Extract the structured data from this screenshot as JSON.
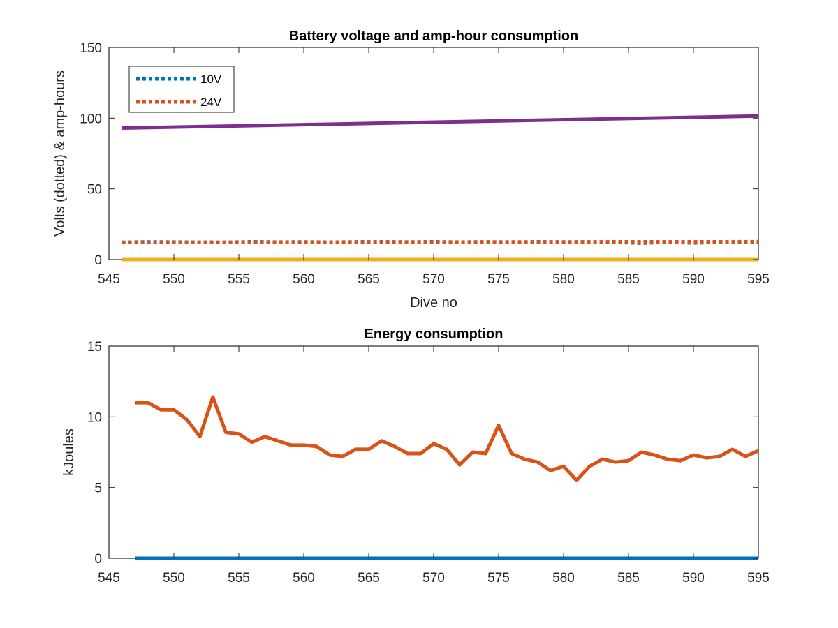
{
  "chart_data": [
    {
      "type": "line",
      "title": "Battery voltage and amp-hour consumption",
      "xlabel": "Dive no",
      "ylabel": "Volts (dotted) & amp-hours",
      "xlim": [
        545,
        595
      ],
      "ylim": [
        0,
        150
      ],
      "xticks": [
        545,
        550,
        555,
        560,
        565,
        570,
        575,
        580,
        585,
        590,
        595
      ],
      "yticks": [
        0,
        50,
        100,
        150
      ],
      "legend_position": "top-left",
      "series": [
        {
          "name": "10V",
          "color": "#0072BD",
          "style": "dotted",
          "x": [
            546,
            548,
            550,
            552,
            554,
            556,
            558,
            560,
            562,
            564,
            566,
            568,
            570,
            572,
            574,
            576,
            578,
            580,
            582,
            584,
            586,
            588,
            590,
            592,
            595
          ],
          "y": [
            12.2,
            12.5,
            12.4,
            12.3,
            12.2,
            12.6,
            12.4,
            12.5,
            12.3,
            12.5,
            12.6,
            12.4,
            12.6,
            12.3,
            12.5,
            12.2,
            12.6,
            12.4,
            12.5,
            12.3,
            11.6,
            12.4,
            11.8,
            12.3,
            12.5
          ]
        },
        {
          "name": "24V",
          "color": "#D95319",
          "style": "dotted",
          "x": [
            546,
            548,
            550,
            552,
            554,
            556,
            558,
            560,
            562,
            564,
            566,
            568,
            570,
            572,
            574,
            576,
            578,
            580,
            582,
            584,
            586,
            588,
            590,
            592,
            595
          ],
          "y": [
            12.1,
            12.1,
            12.2,
            12.2,
            12.2,
            12.3,
            12.3,
            12.3,
            12.3,
            12.4,
            12.4,
            12.4,
            12.4,
            12.4,
            12.5,
            12.5,
            12.5,
            12.5,
            12.5,
            12.6,
            12.6,
            12.6,
            12.6,
            12.6,
            12.7
          ]
        },
        {
          "color": "#EDB120",
          "style": "solid",
          "x": [
            546,
            595
          ],
          "y": [
            0,
            0
          ]
        },
        {
          "color": "#7E2F8E",
          "style": "solid",
          "x": [
            546,
            595
          ],
          "y": [
            93,
            101.5
          ]
        }
      ]
    },
    {
      "type": "line",
      "title": "Energy consumption",
      "xlabel": "",
      "ylabel": "kJoules",
      "xlim": [
        545,
        595
      ],
      "ylim": [
        0,
        15
      ],
      "xticks": [
        545,
        550,
        555,
        560,
        565,
        570,
        575,
        580,
        585,
        590,
        595
      ],
      "yticks": [
        0,
        5,
        10,
        15
      ],
      "series": [
        {
          "color": "#0072BD",
          "style": "solid",
          "x": [
            547,
            595
          ],
          "y": [
            0,
            0
          ]
        },
        {
          "color": "#D95319",
          "style": "solid",
          "x": [
            547,
            548,
            549,
            550,
            551,
            552,
            553,
            554,
            555,
            556,
            557,
            558,
            559,
            560,
            561,
            562,
            563,
            564,
            565,
            566,
            567,
            568,
            569,
            570,
            571,
            572,
            573,
            574,
            575,
            576,
            577,
            578,
            579,
            580,
            581,
            582,
            583,
            584,
            585,
            586,
            587,
            588,
            589,
            590,
            591,
            592,
            593,
            594,
            595
          ],
          "y": [
            11.0,
            11.0,
            10.5,
            10.5,
            9.8,
            8.6,
            11.4,
            8.9,
            8.8,
            8.2,
            8.6,
            8.3,
            8.0,
            8.0,
            7.9,
            7.3,
            7.2,
            7.7,
            7.7,
            8.3,
            7.9,
            7.4,
            7.4,
            8.1,
            7.7,
            6.6,
            7.5,
            7.4,
            9.4,
            7.4,
            7.0,
            6.8,
            6.2,
            6.5,
            5.5,
            6.5,
            7.0,
            6.8,
            6.9,
            7.5,
            7.3,
            7.0,
            6.9,
            7.3,
            7.1,
            7.2,
            7.7,
            7.2,
            7.6
          ]
        }
      ]
    }
  ]
}
